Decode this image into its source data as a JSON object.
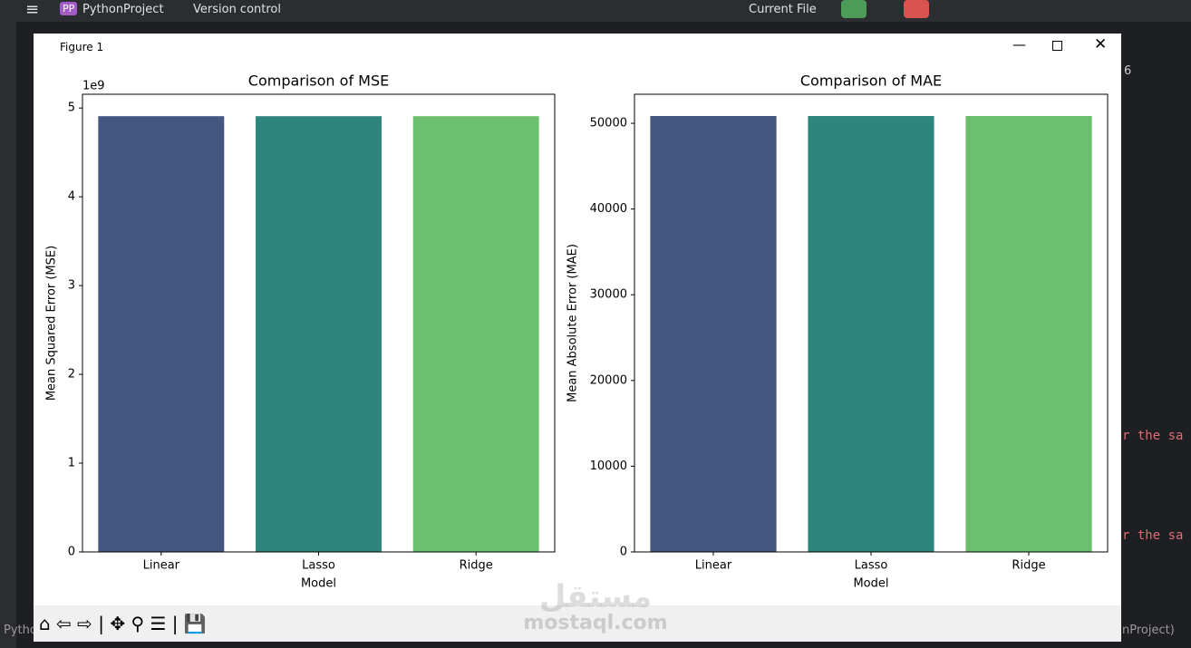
{
  "ide": {
    "project_badge": "PP",
    "project": "PythonProject",
    "vcs": "Version control",
    "run_config": "Current File",
    "right_count": "6",
    "warn1": "r the sa",
    "warn2": "r the sa",
    "status_left": "Pytho",
    "status_right": "nProject)"
  },
  "figure": {
    "title": "Figure 1"
  },
  "watermark": {
    "arabic": "مستقل",
    "latin": "mostaql.com"
  },
  "chart_data": [
    {
      "type": "bar",
      "title": "Comparison of MSE",
      "xlabel": "Model",
      "ylabel": "Mean Squared Error (MSE)",
      "offset_label": "1e9",
      "categories": [
        "Linear",
        "Lasso",
        "Ridge"
      ],
      "values": [
        4.908,
        4.908,
        4.908
      ],
      "colors": [
        "#445782",
        "#2e857d",
        "#6bbf6d"
      ],
      "ylim": [
        0,
        5.155
      ],
      "yticks": [
        0,
        1,
        2,
        3,
        4,
        5
      ]
    },
    {
      "type": "bar",
      "title": "Comparison of MAE",
      "xlabel": "Model",
      "ylabel": "Mean Absolute Error (MAE)",
      "categories": [
        "Linear",
        "Lasso",
        "Ridge"
      ],
      "values": [
        50850,
        50850,
        50850
      ],
      "colors": [
        "#445782",
        "#2e857d",
        "#6bbf6d"
      ],
      "ylim": [
        0,
        53390
      ],
      "yticks": [
        0,
        10000,
        20000,
        30000,
        40000,
        50000
      ]
    }
  ]
}
